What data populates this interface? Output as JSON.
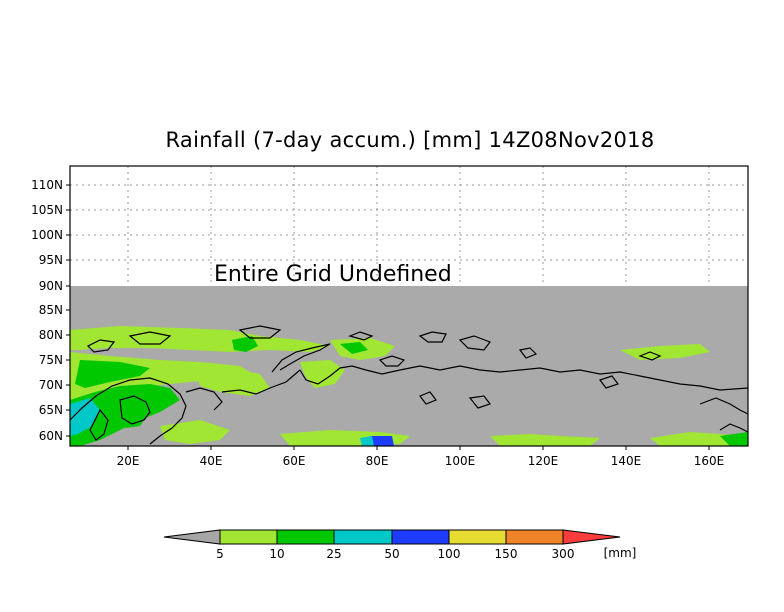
{
  "title": "Rainfall (7-day accum.) [mm] 14Z08Nov2018",
  "note": "Entire Grid Undefined",
  "map": {
    "lat_labels": [
      "110N",
      "105N",
      "100N",
      "95N",
      "90N",
      "85N",
      "80N",
      "75N",
      "70N",
      "65N",
      "60N"
    ],
    "lon_labels": [
      "20E",
      "40E",
      "60E",
      "80E",
      "100E",
      "120E",
      "140E",
      "160E"
    ],
    "undefined_color": "#aaaaaa"
  },
  "legend": {
    "unit": "[mm]",
    "thresholds": [
      "5",
      "10",
      "25",
      "50",
      "100",
      "150",
      "300"
    ],
    "colors": [
      "#a0e632",
      "#00c800",
      "#00c8c8",
      "#1e3cff",
      "#e6dc32",
      "#f08228",
      "#fa3c3c"
    ],
    "below_color": "#a6a6a6"
  }
}
